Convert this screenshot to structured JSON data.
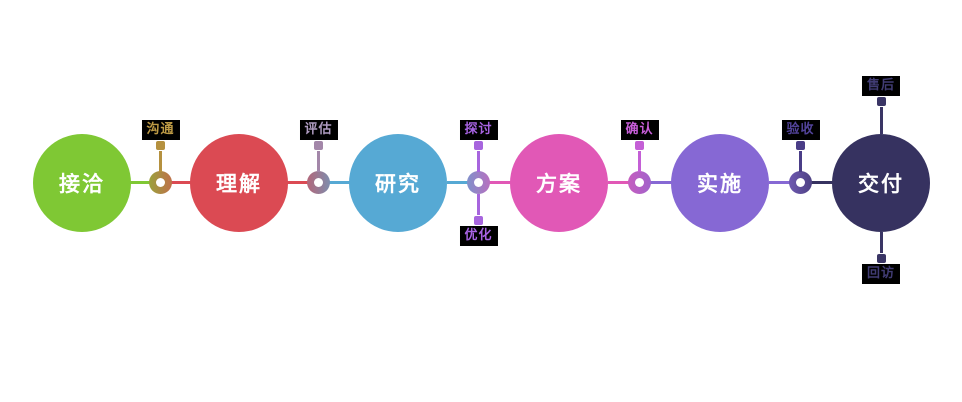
{
  "diagram": {
    "label_background": "#000000",
    "circle_text_color": "#ffffff",
    "stages": [
      {
        "label": "接洽",
        "color": "#7fc834"
      },
      {
        "label": "理解",
        "color": "#db4a53"
      },
      {
        "label": "研究",
        "color": "#56a9d4"
      },
      {
        "label": "方案",
        "color": "#e158b6"
      },
      {
        "label": "实施",
        "color": "#8668d4"
      },
      {
        "label": "交付",
        "color": "#363260"
      }
    ],
    "connectors": [
      {
        "accent": "#b5913f",
        "text_color": "#bd9a45",
        "labels": [
          {
            "text": "沟通",
            "side": "top"
          }
        ]
      },
      {
        "accent": "#a387a9",
        "text_color": "#ae9bc0",
        "labels": [
          {
            "text": "评估",
            "side": "top"
          }
        ]
      },
      {
        "accent": "#a765de",
        "text_color": "#a763e2",
        "labels": [
          {
            "text": "探讨",
            "side": "top"
          },
          {
            "text": "优化",
            "side": "bottom"
          }
        ]
      },
      {
        "accent": "#c45fd6",
        "text_color": "#c75ed9",
        "labels": [
          {
            "text": "确认",
            "side": "top"
          }
        ]
      },
      {
        "accent": "#4a3d87",
        "text_color": "#52439a",
        "labels": [
          {
            "text": "验收",
            "side": "top"
          }
        ]
      }
    ],
    "terminal": {
      "accent": "#3a3565",
      "text_color": "#413c74",
      "labels": [
        {
          "text": "售后",
          "side": "top"
        },
        {
          "text": "回访",
          "side": "bottom"
        }
      ]
    }
  }
}
